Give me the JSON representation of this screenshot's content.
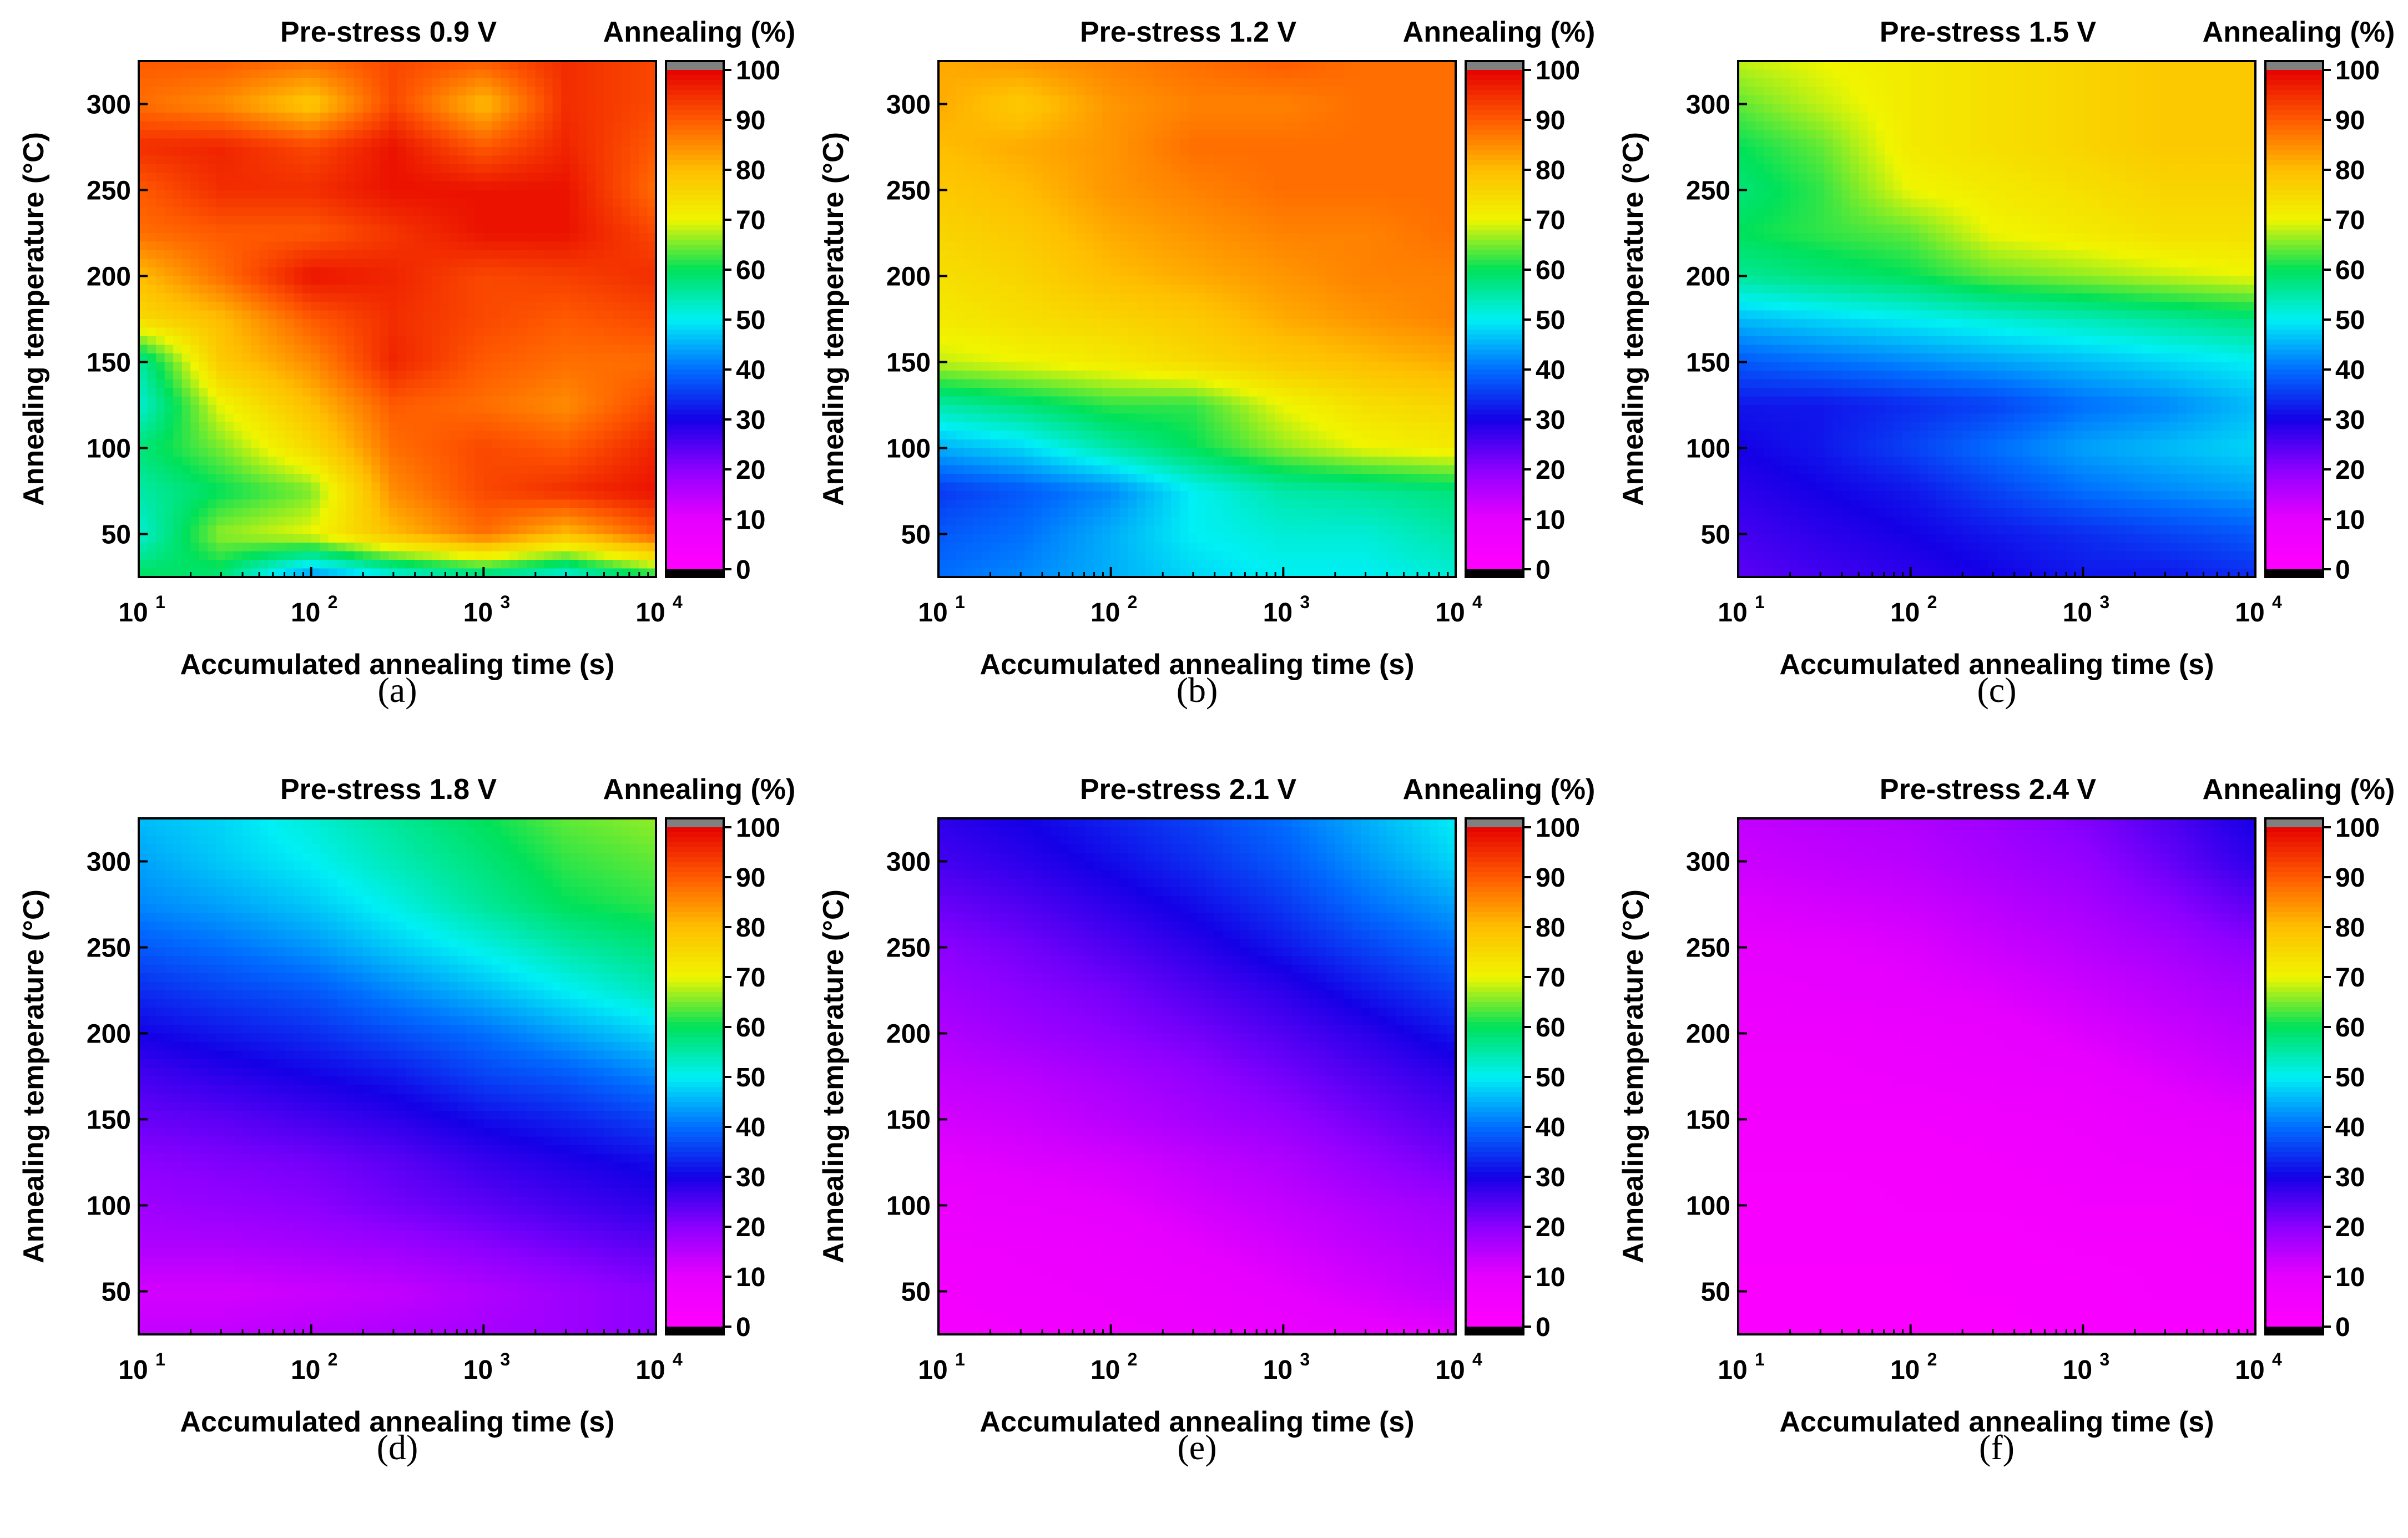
{
  "figure": {
    "panel_captions": [
      "(a)",
      "(b)",
      "(c)",
      "(d)",
      "(e)",
      "(f)"
    ]
  },
  "chart_data": [
    {
      "type": "heatmap",
      "title": "Pre-stress 0.9 V",
      "colorbar_label": "Annealing (%)",
      "xlabel": "Accumulated annealing time (s)",
      "ylabel": "Annealing temperature (°C)",
      "x_scale": "log",
      "xlim": [
        10,
        10000
      ],
      "ylim": [
        25,
        325
      ],
      "x_ticks": [
        10,
        100,
        1000,
        10000
      ],
      "y_ticks": [
        50,
        100,
        150,
        200,
        250,
        300
      ],
      "colorbar_ticks": [
        0,
        10,
        20,
        30,
        40,
        50,
        60,
        70,
        80,
        90,
        100
      ],
      "x": [
        10,
        30,
        100,
        300,
        1000,
        3000,
        10000
      ],
      "y": [
        25,
        50,
        75,
        100,
        125,
        150,
        175,
        200,
        225,
        250,
        275,
        300,
        325
      ],
      "z": [
        [
          60,
          58,
          42,
          50,
          55,
          50,
          60
        ],
        [
          52,
          66,
          70,
          80,
          88,
          80,
          90
        ],
        [
          55,
          60,
          65,
          85,
          92,
          95,
          98
        ],
        [
          58,
          65,
          75,
          88,
          92,
          90,
          96
        ],
        [
          52,
          70,
          80,
          90,
          88,
          85,
          92
        ],
        [
          55,
          78,
          85,
          96,
          90,
          88,
          88
        ],
        [
          75,
          80,
          90,
          95,
          92,
          90,
          92
        ],
        [
          80,
          88,
          98,
          96,
          92,
          93,
          95
        ],
        [
          88,
          90,
          90,
          94,
          98,
          98,
          92
        ],
        [
          90,
          95,
          95,
          98,
          98,
          98,
          88
        ],
        [
          95,
          96,
          92,
          98,
          90,
          96,
          90
        ],
        [
          88,
          85,
          78,
          92,
          80,
          95,
          92
        ],
        [
          90,
          90,
          88,
          92,
          90,
          95,
          92
        ]
      ]
    },
    {
      "type": "heatmap",
      "title": "Pre-stress 1.2 V",
      "colorbar_label": "Annealing (%)",
      "xlabel": "Accumulated annealing time (s)",
      "ylabel": "Annealing temperature (°C)",
      "x_scale": "log",
      "xlim": [
        10,
        10000
      ],
      "ylim": [
        25,
        325
      ],
      "x_ticks": [
        10,
        100,
        1000,
        10000
      ],
      "y_ticks": [
        50,
        100,
        150,
        200,
        250,
        300
      ],
      "colorbar_ticks": [
        0,
        10,
        20,
        30,
        40,
        50,
        60,
        70,
        80,
        90,
        100
      ],
      "x": [
        10,
        30,
        100,
        300,
        1000,
        3000,
        10000
      ],
      "y": [
        25,
        50,
        75,
        100,
        125,
        150,
        175,
        200,
        225,
        250,
        275,
        300,
        325
      ],
      "z": [
        [
          40,
          42,
          45,
          48,
          50,
          50,
          52
        ],
        [
          38,
          40,
          45,
          50,
          52,
          52,
          55
        ],
        [
          35,
          38,
          42,
          50,
          55,
          56,
          58
        ],
        [
          45,
          48,
          55,
          60,
          66,
          70,
          72
        ],
        [
          55,
          58,
          62,
          62,
          70,
          74,
          76
        ],
        [
          68,
          70,
          72,
          75,
          78,
          80,
          82
        ],
        [
          72,
          74,
          76,
          78,
          82,
          84,
          86
        ],
        [
          74,
          76,
          80,
          82,
          84,
          86,
          86
        ],
        [
          76,
          78,
          82,
          84,
          86,
          86,
          88
        ],
        [
          78,
          80,
          84,
          86,
          88,
          88,
          88
        ],
        [
          80,
          82,
          84,
          88,
          88,
          88,
          88
        ],
        [
          82,
          78,
          84,
          86,
          86,
          88,
          88
        ],
        [
          82,
          84,
          86,
          88,
          90,
          88,
          88
        ]
      ]
    },
    {
      "type": "heatmap",
      "title": "Pre-stress 1.5 V",
      "colorbar_label": "Annealing (%)",
      "xlabel": "Accumulated annealing time (s)",
      "ylabel": "Annealing temperature (°C)",
      "x_scale": "log",
      "xlim": [
        10,
        10000
      ],
      "ylim": [
        25,
        325
      ],
      "x_ticks": [
        10,
        100,
        1000,
        10000
      ],
      "y_ticks": [
        50,
        100,
        150,
        200,
        250,
        300
      ],
      "colorbar_ticks": [
        0,
        10,
        20,
        30,
        40,
        50,
        60,
        70,
        80,
        90,
        100
      ],
      "x": [
        10,
        30,
        100,
        300,
        1000,
        3000,
        10000
      ],
      "y": [
        25,
        50,
        75,
        100,
        125,
        150,
        175,
        200,
        225,
        250,
        275,
        300,
        325
      ],
      "z": [
        [
          24,
          26,
          28,
          30,
          32,
          32,
          34
        ],
        [
          26,
          28,
          30,
          32,
          34,
          36,
          38
        ],
        [
          28,
          30,
          32,
          36,
          40,
          42,
          44
        ],
        [
          30,
          32,
          36,
          40,
          44,
          46,
          48
        ],
        [
          32,
          32,
          34,
          36,
          40,
          42,
          46
        ],
        [
          38,
          40,
          42,
          44,
          46,
          48,
          50
        ],
        [
          46,
          48,
          50,
          52,
          54,
          56,
          58
        ],
        [
          56,
          58,
          60,
          64,
          66,
          68,
          70
        ],
        [
          60,
          62,
          64,
          70,
          72,
          74,
          74
        ],
        [
          58,
          62,
          70,
          72,
          74,
          76,
          76
        ],
        [
          60,
          64,
          72,
          74,
          76,
          78,
          78
        ],
        [
          64,
          68,
          72,
          74,
          76,
          78,
          78
        ],
        [
          68,
          70,
          72,
          74,
          76,
          78,
          78
        ]
      ]
    },
    {
      "type": "heatmap",
      "title": "Pre-stress 1.8 V",
      "colorbar_label": "Annealing (%)",
      "xlabel": "Accumulated annealing time (s)",
      "ylabel": "Annealing temperature (°C)",
      "x_scale": "log",
      "xlim": [
        10,
        10000
      ],
      "ylim": [
        25,
        325
      ],
      "x_ticks": [
        10,
        100,
        1000,
        10000
      ],
      "y_ticks": [
        50,
        100,
        150,
        200,
        250,
        300
      ],
      "colorbar_ticks": [
        0,
        10,
        20,
        30,
        40,
        50,
        60,
        70,
        80,
        90,
        100
      ],
      "x": [
        10,
        30,
        100,
        300,
        1000,
        3000,
        10000
      ],
      "y": [
        25,
        50,
        75,
        100,
        125,
        150,
        175,
        200,
        225,
        250,
        275,
        300,
        325
      ],
      "z": [
        [
          14,
          14,
          15,
          16,
          17,
          18,
          20
        ],
        [
          12,
          12,
          13,
          14,
          16,
          18,
          20
        ],
        [
          16,
          16,
          17,
          18,
          20,
          22,
          24
        ],
        [
          18,
          19,
          20,
          22,
          24,
          26,
          28
        ],
        [
          20,
          21,
          22,
          24,
          27,
          29,
          31
        ],
        [
          23,
          24,
          26,
          28,
          31,
          33,
          36
        ],
        [
          26,
          28,
          30,
          32,
          36,
          38,
          42
        ],
        [
          30,
          32,
          34,
          37,
          40,
          44,
          48
        ],
        [
          34,
          36,
          38,
          42,
          46,
          50,
          54
        ],
        [
          38,
          40,
          43,
          47,
          51,
          55,
          58
        ],
        [
          42,
          44,
          47,
          51,
          56,
          60,
          62
        ],
        [
          44,
          47,
          50,
          54,
          58,
          62,
          64
        ],
        [
          46,
          48,
          52,
          56,
          60,
          64,
          66
        ]
      ]
    },
    {
      "type": "heatmap",
      "title": "Pre-stress 2.1 V",
      "colorbar_label": "Annealing (%)",
      "xlabel": "Accumulated annealing time (s)",
      "ylabel": "Annealing temperature (°C)",
      "x_scale": "log",
      "xlim": [
        10,
        10000
      ],
      "ylim": [
        25,
        325
      ],
      "x_ticks": [
        10,
        100,
        1000,
        10000
      ],
      "y_ticks": [
        50,
        100,
        150,
        200,
        250,
        300
      ],
      "colorbar_ticks": [
        0,
        10,
        20,
        30,
        40,
        50,
        60,
        70,
        80,
        90,
        100
      ],
      "x": [
        10,
        30,
        100,
        300,
        1000,
        3000,
        10000
      ],
      "y": [
        25,
        50,
        75,
        100,
        125,
        150,
        175,
        200,
        225,
        250,
        275,
        300,
        325
      ],
      "z": [
        [
          4,
          5,
          6,
          7,
          8,
          9,
          10
        ],
        [
          5,
          6,
          7,
          8,
          10,
          12,
          14
        ],
        [
          6,
          7,
          8,
          10,
          12,
          14,
          16
        ],
        [
          8,
          9,
          10,
          12,
          14,
          16,
          18
        ],
        [
          10,
          11,
          12,
          14,
          16,
          19,
          22
        ],
        [
          12,
          13,
          15,
          17,
          19,
          22,
          25
        ],
        [
          14,
          15,
          17,
          19,
          22,
          25,
          28
        ],
        [
          16,
          18,
          20,
          22,
          25,
          28,
          32
        ],
        [
          18,
          20,
          22,
          25,
          28,
          32,
          36
        ],
        [
          20,
          22,
          25,
          28,
          32,
          36,
          40
        ],
        [
          23,
          25,
          28,
          31,
          35,
          40,
          44
        ],
        [
          26,
          28,
          31,
          34,
          38,
          43,
          48
        ],
        [
          28,
          30,
          33,
          36,
          40,
          45,
          50
        ]
      ]
    },
    {
      "type": "heatmap",
      "title": "Pre-stress 2.4 V",
      "colorbar_label": "Annealing (%)",
      "xlabel": "Accumulated annealing time (s)",
      "ylabel": "Annealing temperature (°C)",
      "x_scale": "log",
      "xlim": [
        10,
        10000
      ],
      "ylim": [
        25,
        325
      ],
      "x_ticks": [
        10,
        100,
        1000,
        10000
      ],
      "y_ticks": [
        50,
        100,
        150,
        200,
        250,
        300
      ],
      "colorbar_ticks": [
        0,
        10,
        20,
        30,
        40,
        50,
        60,
        70,
        80,
        90,
        100
      ],
      "x": [
        10,
        30,
        100,
        300,
        1000,
        3000,
        10000
      ],
      "y": [
        25,
        50,
        75,
        100,
        125,
        150,
        175,
        200,
        225,
        250,
        275,
        300,
        325
      ],
      "z": [
        [
          2,
          2,
          2,
          2,
          3,
          3,
          3
        ],
        [
          2,
          2,
          2,
          3,
          3,
          4,
          4
        ],
        [
          3,
          3,
          3,
          3,
          4,
          4,
          5
        ],
        [
          3,
          3,
          4,
          4,
          5,
          5,
          6
        ],
        [
          4,
          4,
          4,
          5,
          6,
          7,
          8
        ],
        [
          5,
          5,
          5,
          6,
          7,
          9,
          10
        ],
        [
          6,
          6,
          7,
          8,
          9,
          11,
          13
        ],
        [
          7,
          7,
          8,
          9,
          11,
          13,
          15
        ],
        [
          8,
          9,
          10,
          11,
          13,
          15,
          17
        ],
        [
          10,
          10,
          11,
          13,
          15,
          17,
          20
        ],
        [
          11,
          12,
          13,
          15,
          17,
          20,
          24
        ],
        [
          13,
          14,
          15,
          17,
          19,
          23,
          28
        ],
        [
          14,
          15,
          16,
          18,
          21,
          25,
          30
        ]
      ]
    }
  ]
}
